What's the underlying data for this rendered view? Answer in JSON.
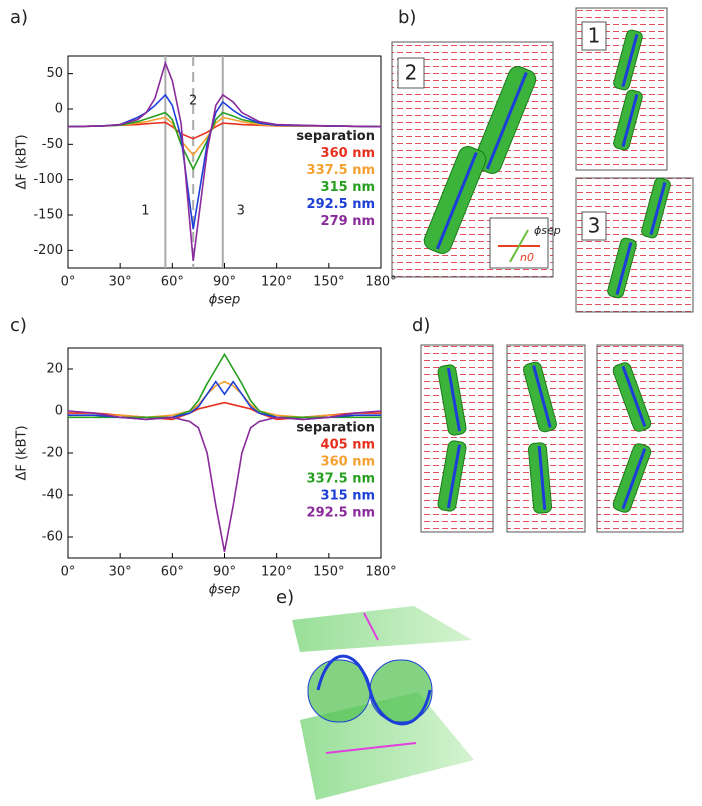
{
  "chart_data": [
    {
      "type": "line",
      "ylabel": "ΔF (kBT)",
      "xlabel": "ϕsep",
      "legend_title": "separation",
      "legend": "right",
      "xlim": [
        0,
        180
      ],
      "ylim": [
        -225,
        75
      ],
      "xticks": [
        {
          "value": 0,
          "label": "0°"
        },
        {
          "value": 30,
          "label": "30°"
        },
        {
          "value": 60,
          "label": "60°"
        },
        {
          "value": 90,
          "label": "90°"
        },
        {
          "value": 120,
          "label": "120°"
        },
        {
          "value": 150,
          "label": "150°"
        },
        {
          "value": 180,
          "label": "180°"
        }
      ],
      "yticks": [
        -200,
        -150,
        -100,
        -50,
        0,
        50
      ],
      "vlines": [
        56,
        72,
        89
      ],
      "vline_labels": [
        "1",
        "2",
        "3"
      ],
      "x": [
        0,
        20,
        30,
        40,
        45,
        50,
        56,
        60,
        65,
        72,
        80,
        85,
        89,
        95,
        100,
        110,
        120,
        150,
        180
      ],
      "series": [
        {
          "name": "360 nm",
          "color": "#e8301e",
          "values": [
            -25,
            -24,
            -23,
            -22,
            -21,
            -20,
            -19,
            -25,
            -35,
            -42,
            -33,
            -25,
            -20,
            -21,
            -22,
            -23,
            -24,
            -24,
            -25
          ]
        },
        {
          "name": "337.5 nm",
          "color": "#f5a030",
          "values": [
            -25,
            -24,
            -23,
            -20,
            -18,
            -15,
            -12,
            -20,
            -45,
            -65,
            -40,
            -20,
            -12,
            -15,
            -18,
            -22,
            -24,
            -24,
            -25
          ]
        },
        {
          "name": "315 nm",
          "color": "#27a020",
          "values": [
            -25,
            -24,
            -23,
            -18,
            -14,
            -10,
            -5,
            -15,
            -50,
            -85,
            -45,
            -15,
            -5,
            -10,
            -15,
            -20,
            -23,
            -24,
            -25
          ]
        },
        {
          "name": "292.5 nm",
          "color": "#1d3fd8",
          "values": [
            -25,
            -24,
            -22,
            -12,
            -5,
            5,
            20,
            5,
            -40,
            -170,
            -50,
            -5,
            10,
            -2,
            -10,
            -20,
            -23,
            -24,
            -25
          ]
        },
        {
          "name": "279 nm",
          "color": "#8a2a9c",
          "values": [
            -25,
            -24,
            -22,
            -15,
            -5,
            15,
            65,
            40,
            -20,
            -215,
            -60,
            5,
            20,
            10,
            -5,
            -18,
            -22,
            -24,
            -25
          ]
        }
      ]
    },
    {
      "type": "line",
      "ylabel": "ΔF (kBT)",
      "xlabel": "ϕsep",
      "legend_title": "separation",
      "legend": "right",
      "xlim": [
        0,
        180
      ],
      "ylim": [
        -70,
        30
      ],
      "xticks": [
        {
          "value": 0,
          "label": "0°"
        },
        {
          "value": 30,
          "label": "30°"
        },
        {
          "value": 60,
          "label": "60°"
        },
        {
          "value": 90,
          "label": "90°"
        },
        {
          "value": 120,
          "label": "120°"
        },
        {
          "value": 150,
          "label": "150°"
        },
        {
          "value": 180,
          "label": "180°"
        }
      ],
      "yticks": [
        -60,
        -40,
        -20,
        0,
        20
      ],
      "x": [
        0,
        15,
        30,
        45,
        60,
        70,
        75,
        80,
        85,
        90,
        95,
        100,
        105,
        110,
        120,
        135,
        150,
        165,
        180
      ],
      "series": [
        {
          "name": "405 nm",
          "color": "#e8301e",
          "values": [
            -1,
            -1,
            -2,
            -3,
            -4,
            -1,
            1,
            2,
            3,
            4,
            3,
            2,
            1,
            -1,
            -4,
            -3,
            -2,
            -1,
            -1
          ]
        },
        {
          "name": "360 nm",
          "color": "#f5a030",
          "values": [
            -2,
            -2,
            -2,
            -3,
            -2,
            0,
            3,
            8,
            12,
            14,
            12,
            8,
            3,
            0,
            -2,
            -3,
            -2,
            -2,
            -2
          ]
        },
        {
          "name": "337.5 nm",
          "color": "#27a020",
          "values": [
            -3,
            -3,
            -3,
            -3,
            -3,
            0,
            5,
            13,
            20,
            27,
            20,
            13,
            5,
            0,
            -3,
            -3,
            -3,
            -3,
            -3
          ]
        },
        {
          "name": "315 nm",
          "color": "#1d3fd8",
          "values": [
            -2,
            -2,
            -3,
            -4,
            -3,
            -1,
            2,
            8,
            14,
            8,
            14,
            8,
            2,
            -1,
            -3,
            -4,
            -3,
            -2,
            -2
          ]
        },
        {
          "name": "292.5 nm",
          "color": "#8a2a9c",
          "values": [
            0,
            -1,
            -3,
            -4,
            -3,
            -5,
            -8,
            -20,
            -45,
            -67,
            -45,
            -20,
            -8,
            -5,
            -3,
            -4,
            -3,
            -1,
            0
          ]
        }
      ]
    }
  ],
  "panel_labels": [
    "a)",
    "b)",
    "c)",
    "d)",
    "e)"
  ],
  "panel_b": {
    "box_labels": [
      "2",
      "1",
      "3"
    ],
    "phi_label": "ϕsep",
    "n0_label": "n0"
  }
}
